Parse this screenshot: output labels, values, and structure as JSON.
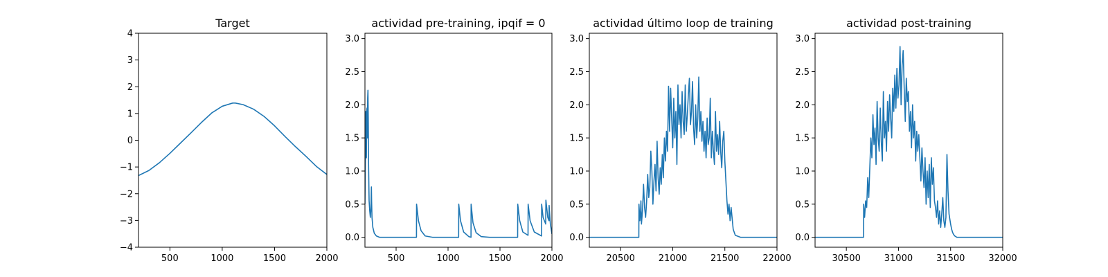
{
  "chart_data": [
    {
      "type": "line",
      "title": "Target",
      "xlabel": "",
      "ylabel": "",
      "xlim": [
        200,
        2000
      ],
      "ylim": [
        -4,
        4
      ],
      "xticks": [
        500,
        1000,
        1500,
        2000
      ],
      "yticks": [
        -4,
        -3,
        -2,
        -1,
        0,
        1,
        2,
        3,
        4
      ],
      "x_tick_labels": [
        "500",
        "1000",
        "1500",
        "2000"
      ],
      "y_tick_labels": [
        "−4",
        "−3",
        "−2",
        "−1",
        "0",
        "1",
        "2",
        "3",
        "4"
      ],
      "grid": false,
      "color": "#1f77b4",
      "series": [
        {
          "x": [
            200,
            300,
            400,
            500,
            600,
            700,
            800,
            900,
            1000,
            1100,
            1125,
            1200,
            1300,
            1400,
            1500,
            1600,
            1700,
            1800,
            1900,
            2000
          ],
          "y": [
            -1.32,
            -1.13,
            -0.84,
            -0.49,
            -0.11,
            0.27,
            0.66,
            1.02,
            1.27,
            1.39,
            1.39,
            1.33,
            1.16,
            0.89,
            0.54,
            0.14,
            -0.24,
            -0.6,
            -0.98,
            -1.28
          ]
        }
      ]
    },
    {
      "type": "line",
      "title": "actividad pre-training, ipqif = 0",
      "xlabel": "",
      "ylabel": "",
      "xlim": [
        200,
        2000
      ],
      "ylim": [
        -0.15,
        3.08
      ],
      "xticks": [
        500,
        1000,
        1500,
        2000
      ],
      "yticks": [
        0.0,
        0.5,
        1.0,
        1.5,
        2.0,
        2.5,
        3.0
      ],
      "x_tick_labels": [
        "500",
        "1000",
        "1500",
        "2000"
      ],
      "y_tick_labels": [
        "0.0",
        "0.5",
        "1.0",
        "1.5",
        "2.0",
        "2.5",
        "3.0"
      ],
      "grid": false,
      "color": "#1f77b4",
      "series": [
        {
          "x": [
            200,
            203,
            206,
            208,
            211,
            214,
            217,
            220,
            223,
            226,
            229,
            232,
            235,
            238,
            240,
            246,
            252,
            258,
            262,
            264,
            268,
            276,
            290,
            310,
            340,
            400,
            500,
            600,
            696,
            697,
            715,
            740,
            780,
            850,
            1000,
            1102,
            1103,
            1120,
            1150,
            1200,
            1221,
            1222,
            1240,
            1270,
            1320,
            1400,
            1670,
            1671,
            1690,
            1720,
            1770,
            1771,
            1790,
            1830,
            1900,
            1901,
            1915,
            1940,
            1942,
            1960,
            1972,
            1973,
            1985,
            2000
          ],
          "y": [
            0.5,
            1.0,
            1.4,
            1.9,
            1.3,
            1.2,
            1.9,
            1.95,
            1.5,
            2.1,
            2.22,
            1.8,
            1.1,
            0.75,
            0.55,
            0.4,
            0.3,
            0.45,
            0.76,
            0.55,
            0.3,
            0.15,
            0.06,
            0.02,
            0.0,
            0.0,
            0.0,
            0.0,
            0.0,
            0.5,
            0.25,
            0.1,
            0.02,
            0.0,
            0.0,
            0.0,
            0.5,
            0.25,
            0.08,
            0.01,
            0.0,
            0.5,
            0.22,
            0.07,
            0.01,
            0.0,
            0.0,
            0.5,
            0.25,
            0.08,
            0.03,
            0.5,
            0.25,
            0.08,
            0.02,
            0.5,
            0.3,
            0.2,
            0.56,
            0.3,
            0.25,
            0.48,
            0.2,
            0.05
          ]
        }
      ]
    },
    {
      "type": "line",
      "title": "actividad último loop de training",
      "xlabel": "",
      "ylabel": "",
      "xlim": [
        20200,
        22000
      ],
      "ylim": [
        -0.15,
        3.08
      ],
      "xticks": [
        20500,
        21000,
        21500,
        22000
      ],
      "yticks": [
        0.0,
        0.5,
        1.0,
        1.5,
        2.0,
        2.5,
        3.0
      ],
      "x_tick_labels": [
        "20500",
        "21000",
        "21500",
        "22000"
      ],
      "y_tick_labels": [
        "0.0",
        "0.5",
        "1.0",
        "1.5",
        "2.0",
        "2.5",
        "3.0"
      ],
      "grid": false,
      "color": "#1f77b4",
      "series": [
        {
          "x": [
            20200,
            20500,
            20675,
            20676,
            20685,
            20690,
            20695,
            20700,
            20710,
            20720,
            20730,
            20740,
            20750,
            20760,
            20770,
            20780,
            20790,
            20800,
            20810,
            20820,
            20830,
            20840,
            20850,
            20860,
            20870,
            20880,
            20890,
            20900,
            20910,
            20920,
            20930,
            20940,
            20950,
            20960,
            20970,
            20980,
            20990,
            21000,
            21010,
            21020,
            21030,
            21040,
            21050,
            21060,
            21070,
            21080,
            21090,
            21100,
            21110,
            21120,
            21130,
            21140,
            21150,
            21160,
            21170,
            21180,
            21190,
            21200,
            21210,
            21220,
            21230,
            21240,
            21250,
            21260,
            21270,
            21280,
            21290,
            21300,
            21310,
            21320,
            21330,
            21340,
            21350,
            21360,
            21370,
            21380,
            21390,
            21400,
            21410,
            21420,
            21430,
            21440,
            21450,
            21460,
            21470,
            21480,
            21490,
            21500,
            21510,
            21520,
            21530,
            21540,
            21550,
            21560,
            21580,
            21600,
            21650,
            21700,
            22000
          ],
          "y": [
            0.0,
            0.0,
            0.0,
            0.5,
            0.25,
            0.35,
            0.55,
            0.2,
            0.4,
            0.8,
            0.45,
            0.3,
            0.55,
            0.95,
            0.6,
            0.75,
            1.3,
            1.0,
            0.5,
            0.85,
            1.1,
            0.7,
            1.45,
            0.9,
            0.65,
            1.05,
            0.8,
            1.25,
            0.9,
            1.5,
            1.15,
            1.6,
            1.3,
            2.28,
            1.6,
            2.25,
            1.8,
            1.35,
            2.1,
            1.5,
            1.9,
            1.1,
            2.3,
            1.7,
            2.0,
            1.5,
            2.2,
            1.75,
            1.55,
            2.3,
            1.6,
            1.85,
            2.15,
            2.4,
            1.7,
            1.9,
            2.35,
            1.65,
            1.4,
            2.0,
            1.5,
            1.8,
            2.42,
            1.6,
            1.9,
            1.45,
            1.75,
            1.3,
            1.6,
            1.2,
            1.8,
            1.4,
            1.5,
            2.1,
            1.2,
            1.6,
            1.3,
            1.1,
            1.9,
            1.3,
            1.55,
            1.25,
            1.75,
            1.3,
            1.05,
            1.45,
            1.6,
            1.15,
            0.85,
            0.55,
            0.35,
            0.5,
            0.25,
            0.45,
            0.12,
            0.03,
            0.0,
            0.0,
            0.0
          ]
        }
      ]
    },
    {
      "type": "line",
      "title": "actividad post-training",
      "xlabel": "",
      "ylabel": "",
      "xlim": [
        30200,
        32000
      ],
      "ylim": [
        -0.15,
        3.08
      ],
      "xticks": [
        30500,
        31000,
        31500,
        32000
      ],
      "yticks": [
        0.0,
        0.5,
        1.0,
        1.5,
        2.0,
        2.5,
        3.0
      ],
      "x_tick_labels": [
        "30500",
        "31000",
        "31500",
        "32000"
      ],
      "y_tick_labels": [
        "0.0",
        "0.5",
        "1.0",
        "1.5",
        "2.0",
        "2.5",
        "3.0"
      ],
      "grid": false,
      "color": "#1f77b4",
      "series": [
        {
          "x": [
            30200,
            30500,
            30665,
            30666,
            30675,
            30685,
            30695,
            30705,
            30715,
            30725,
            30735,
            30745,
            30755,
            30765,
            30775,
            30785,
            30795,
            30805,
            30815,
            30825,
            30835,
            30845,
            30855,
            30865,
            30875,
            30885,
            30895,
            30905,
            30915,
            30925,
            30935,
            30945,
            30955,
            30965,
            30975,
            30985,
            30995,
            31005,
            31015,
            31025,
            31035,
            31045,
            31055,
            31065,
            31075,
            31085,
            31095,
            31105,
            31115,
            31125,
            31135,
            31145,
            31155,
            31165,
            31175,
            31185,
            31195,
            31205,
            31215,
            31225,
            31235,
            31245,
            31255,
            31265,
            31275,
            31285,
            31295,
            31305,
            31315,
            31325,
            31335,
            31345,
            31355,
            31365,
            31375,
            31385,
            31395,
            31405,
            31415,
            31425,
            31435,
            31445,
            31455,
            31465,
            31475,
            31485,
            31500,
            31510,
            31520,
            31530,
            31540,
            31550,
            31560,
            31580,
            31600,
            31650,
            32000
          ],
          "y": [
            0.0,
            0.0,
            0.0,
            0.5,
            0.3,
            0.55,
            0.45,
            0.9,
            0.6,
            1.05,
            1.5,
            1.2,
            1.85,
            1.4,
            1.65,
            1.1,
            2.05,
            1.5,
            1.3,
            1.95,
            1.45,
            1.15,
            2.2,
            1.5,
            1.75,
            1.3,
            2.05,
            1.6,
            2.15,
            1.8,
            1.5,
            2.25,
            1.9,
            2.45,
            1.95,
            2.55,
            2.1,
            2.3,
            2.88,
            2.0,
            2.6,
            2.82,
            2.25,
            1.75,
            2.4,
            2.05,
            2.2,
            1.6,
            1.9,
            1.35,
            2.0,
            1.5,
            1.75,
            1.15,
            1.6,
            1.3,
            1.55,
            1.2,
            0.85,
            1.35,
            1.0,
            0.75,
            1.2,
            0.5,
            1.0,
            0.6,
            1.1,
            0.45,
            1.2,
            0.8,
            1.05,
            0.55,
            0.45,
            0.3,
            0.55,
            0.2,
            0.4,
            0.15,
            0.35,
            0.6,
            0.25,
            0.15,
            0.3,
            1.25,
            0.7,
            0.35,
            0.2,
            0.12,
            0.07,
            0.04,
            0.02,
            0.01,
            0.0,
            0.0,
            0.0,
            0.0,
            0.0
          ]
        }
      ]
    }
  ]
}
